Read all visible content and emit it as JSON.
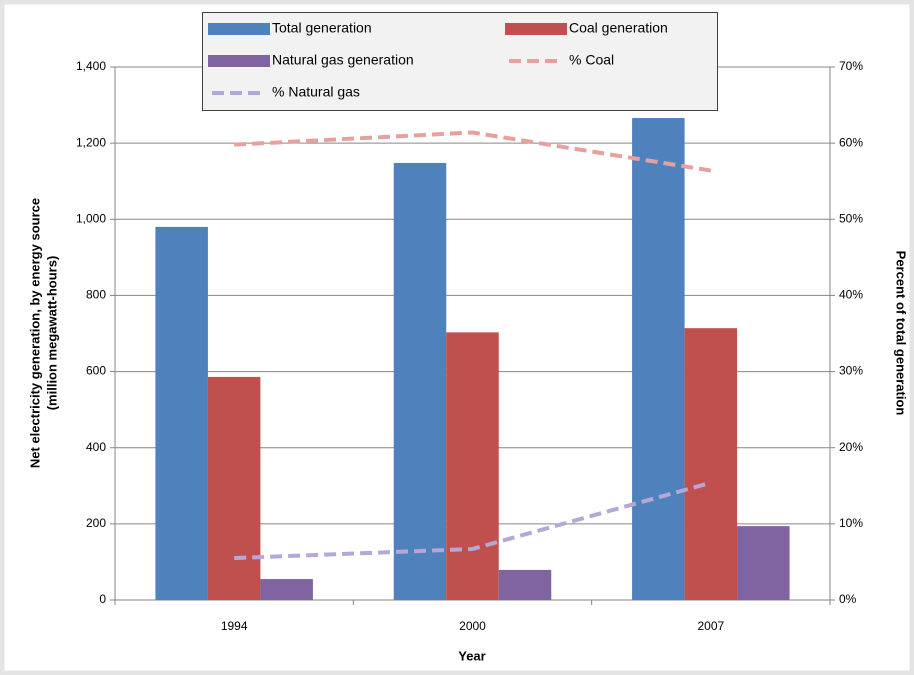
{
  "chart_data": {
    "type": "bar",
    "x_label": "Year",
    "y_label": "Net electricity generation, by energy source",
    "y_label_units": "(million megawatt-hours)",
    "y2_label": "Percent of total generation",
    "categories": [
      "1994",
      "2000",
      "2007"
    ],
    "series": [
      {
        "name": "Total generation",
        "type": "bar",
        "color": "#4f81bd",
        "values": [
          980,
          1148,
          1266
        ]
      },
      {
        "name": "Coal generation",
        "type": "bar",
        "color": "#c0504d",
        "values": [
          586,
          703,
          714
        ]
      },
      {
        "name": "Natural gas generation",
        "type": "bar",
        "color": "#8064a2",
        "values": [
          55,
          79,
          194
        ]
      },
      {
        "name": "% Coal",
        "type": "line",
        "dashed": true,
        "axis": "y2",
        "color": "#e6a19e",
        "values": [
          59.8,
          61.4,
          56.4
        ]
      },
      {
        "name": "% Natural gas",
        "type": "line",
        "dashed": true,
        "axis": "y2",
        "color": "#b5a7d6",
        "values": [
          5.5,
          6.7,
          15.4
        ]
      }
    ],
    "ylim": [
      0,
      1400
    ],
    "yticks": [
      0,
      200,
      400,
      600,
      800,
      {
        "value": 1000,
        "label": "1,000"
      },
      {
        "value": 1200,
        "label": "1,200"
      },
      {
        "value": 1400,
        "label": "1,400"
      }
    ],
    "y2lim": [
      0,
      70
    ],
    "y2ticks": [
      {
        "value": 0,
        "label": "0%"
      },
      {
        "value": 10,
        "label": "10%"
      },
      {
        "value": 20,
        "label": "20%"
      },
      {
        "value": 30,
        "label": "30%"
      },
      {
        "value": 40,
        "label": "40%"
      },
      {
        "value": 50,
        "label": "50%"
      },
      {
        "value": 60,
        "label": "60%"
      },
      {
        "value": 70,
        "label": "70%"
      }
    ],
    "grid": true,
    "legend": "top"
  }
}
